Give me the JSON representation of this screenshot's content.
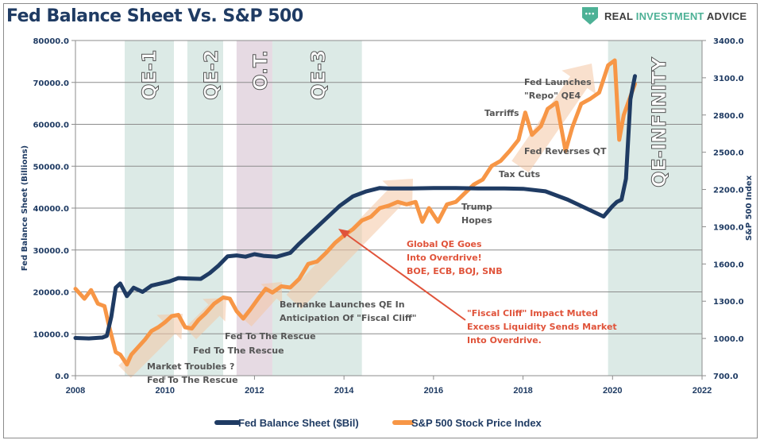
{
  "header": {
    "title": "Fed Balance Sheet Vs. S&P 500",
    "logo": {
      "icon": "shield-dots-icon",
      "text_part1": "REAL ",
      "text_accent": "INVESTMENT",
      "text_part2": " ADVICE",
      "accent_color": "#4db196"
    }
  },
  "chart_data": {
    "type": "line",
    "title": "Fed Balance Sheet Vs. S&P 500",
    "xlabel": "",
    "ylabel": "Fed Balance Sheet (Billions)",
    "y2label": "S&P 500 Index",
    "xlim": [
      2008,
      2022
    ],
    "ylim": [
      0,
      80000
    ],
    "y2lim": [
      700,
      3400
    ],
    "x_ticks": [
      "2008",
      "2010",
      "2012",
      "2014",
      "2016",
      "2018",
      "2020",
      "2022"
    ],
    "y_ticks": [
      "0.0",
      "10000.0",
      "20000.0",
      "30000.0",
      "40000.0",
      "50000.0",
      "60000.0",
      "70000.0",
      "80000.0"
    ],
    "y2_ticks": [
      "700.0",
      "1000.0",
      "1300.0",
      "1600.0",
      "1900.0",
      "2200.0",
      "2500.0",
      "2800.0",
      "3100.0",
      "3400.0"
    ],
    "grid": true,
    "legend_position": "bottom-center",
    "colors": {
      "fed": "#1f3b63",
      "spx": "#f79646",
      "qe_region": "#dceae6",
      "ot_region": "#e6dae3",
      "red_annotation": "#e0533a"
    },
    "series": [
      {
        "name": "Fed Balance Sheet ($Bil)",
        "axis": "left",
        "x": [
          2008.0,
          2008.3,
          2008.6,
          2008.7,
          2008.8,
          2008.9,
          2009.0,
          2009.15,
          2009.3,
          2009.5,
          2009.7,
          2009.9,
          2010.1,
          2010.3,
          2010.5,
          2010.8,
          2011.0,
          2011.2,
          2011.4,
          2011.6,
          2011.8,
          2012.0,
          2012.2,
          2012.5,
          2012.8,
          2013.0,
          2013.3,
          2013.6,
          2013.9,
          2014.2,
          2014.5,
          2014.8,
          2015.0,
          2015.5,
          2016.0,
          2016.5,
          2017.0,
          2017.5,
          2018.0,
          2018.5,
          2019.0,
          2019.5,
          2019.8,
          2020.0,
          2020.1,
          2020.2,
          2020.3,
          2020.4,
          2020.5
        ],
        "values": [
          9000,
          8900,
          9100,
          9500,
          14000,
          21000,
          22000,
          19000,
          21000,
          20000,
          21500,
          22000,
          22500,
          23300,
          23200,
          23100,
          24500,
          26300,
          28500,
          28700,
          28400,
          29000,
          28600,
          28400,
          29300,
          31500,
          34500,
          37500,
          40500,
          42800,
          44000,
          44800,
          44700,
          44700,
          44800,
          44800,
          44700,
          44700,
          44600,
          44000,
          42000,
          39500,
          38000,
          40500,
          41500,
          42000,
          47000,
          66000,
          71500
        ]
      },
      {
        "name": "S&P 500 Stock Price Index",
        "axis": "right",
        "x": [
          2008.0,
          2008.2,
          2008.35,
          2008.5,
          2008.65,
          2008.75,
          2008.9,
          2009.0,
          2009.15,
          2009.25,
          2009.4,
          2009.55,
          2009.7,
          2009.85,
          2010.0,
          2010.15,
          2010.3,
          2010.45,
          2010.6,
          2010.75,
          2010.9,
          2011.1,
          2011.3,
          2011.45,
          2011.6,
          2011.75,
          2011.9,
          2012.1,
          2012.25,
          2012.4,
          2012.6,
          2012.8,
          2013.0,
          2013.2,
          2013.4,
          2013.6,
          2013.8,
          2014.0,
          2014.2,
          2014.4,
          2014.6,
          2014.8,
          2015.0,
          2015.2,
          2015.4,
          2015.6,
          2015.75,
          2015.9,
          2016.1,
          2016.3,
          2016.5,
          2016.7,
          2016.9,
          2017.1,
          2017.3,
          2017.5,
          2017.7,
          2017.9,
          2018.05,
          2018.2,
          2018.4,
          2018.55,
          2018.75,
          2018.95,
          2019.1,
          2019.3,
          2019.5,
          2019.7,
          2019.9,
          2020.05,
          2020.15,
          2020.25,
          2020.4,
          2020.5
        ],
        "values": [
          1400,
          1320,
          1390,
          1280,
          1260,
          1100,
          890,
          870,
          790,
          870,
          930,
          990,
          1060,
          1090,
          1130,
          1180,
          1190,
          1090,
          1080,
          1150,
          1200,
          1280,
          1330,
          1320,
          1220,
          1160,
          1230,
          1330,
          1400,
          1370,
          1420,
          1410,
          1480,
          1600,
          1620,
          1690,
          1770,
          1830,
          1880,
          1950,
          1980,
          2050,
          2070,
          2100,
          2080,
          2100,
          1940,
          2050,
          1940,
          2080,
          2100,
          2170,
          2240,
          2280,
          2390,
          2430,
          2510,
          2600,
          2820,
          2640,
          2710,
          2850,
          2900,
          2510,
          2700,
          2890,
          2930,
          2980,
          3200,
          3240,
          2600,
          2800,
          2950,
          3050
        ]
      }
    ],
    "regions": [
      {
        "label": "QE-1",
        "start": 2009.1,
        "end": 2010.2,
        "type": "qe"
      },
      {
        "label": "QE-2",
        "start": 2010.5,
        "end": 2011.3,
        "type": "qe"
      },
      {
        "label": "O.T.",
        "start": 2011.6,
        "end": 2012.4,
        "type": "ot"
      },
      {
        "label": "QE-3",
        "start": 2012.4,
        "end": 2014.4,
        "type": "qe"
      },
      {
        "label": "QE-INFINITY",
        "start": 2019.9,
        "end": 2022.0,
        "type": "qe"
      }
    ],
    "annotations": [
      {
        "lines": [
          "Market Troubles ?",
          "Fed To The Rescue"
        ],
        "color": "gray"
      },
      {
        "lines": [
          "Fed To The Rescue"
        ],
        "color": "gray"
      },
      {
        "lines": [
          "Fed To The Rescue"
        ],
        "color": "gray"
      },
      {
        "lines": [
          "Bernanke Launches QE In",
          "Anticipation Of \"Fiscal Cliff\""
        ],
        "color": "gray"
      },
      {
        "lines": [
          "Global QE Goes",
          "Into Overdrive!",
          "BOE, ECB, BOJ, SNB"
        ],
        "color": "red"
      },
      {
        "lines": [
          "\"Fiscal Cliff\" Impact Muted",
          "Excess Liquidity Sends Market",
          "Into Overdrive."
        ],
        "color": "red"
      },
      {
        "lines": [
          "Trump",
          "Hopes"
        ],
        "color": "gray"
      },
      {
        "lines": [
          "Tax Cuts"
        ],
        "color": "gray"
      },
      {
        "lines": [
          "Tarriffs"
        ],
        "color": "gray"
      },
      {
        "lines": [
          "Fed Reverses QT"
        ],
        "color": "gray"
      },
      {
        "lines": [
          "Fed Launches",
          "\"Repo\" QE4"
        ],
        "color": "gray"
      }
    ],
    "legend": [
      "Fed Balance Sheet ($Bil)",
      "S&P 500 Stock Price Index"
    ]
  }
}
